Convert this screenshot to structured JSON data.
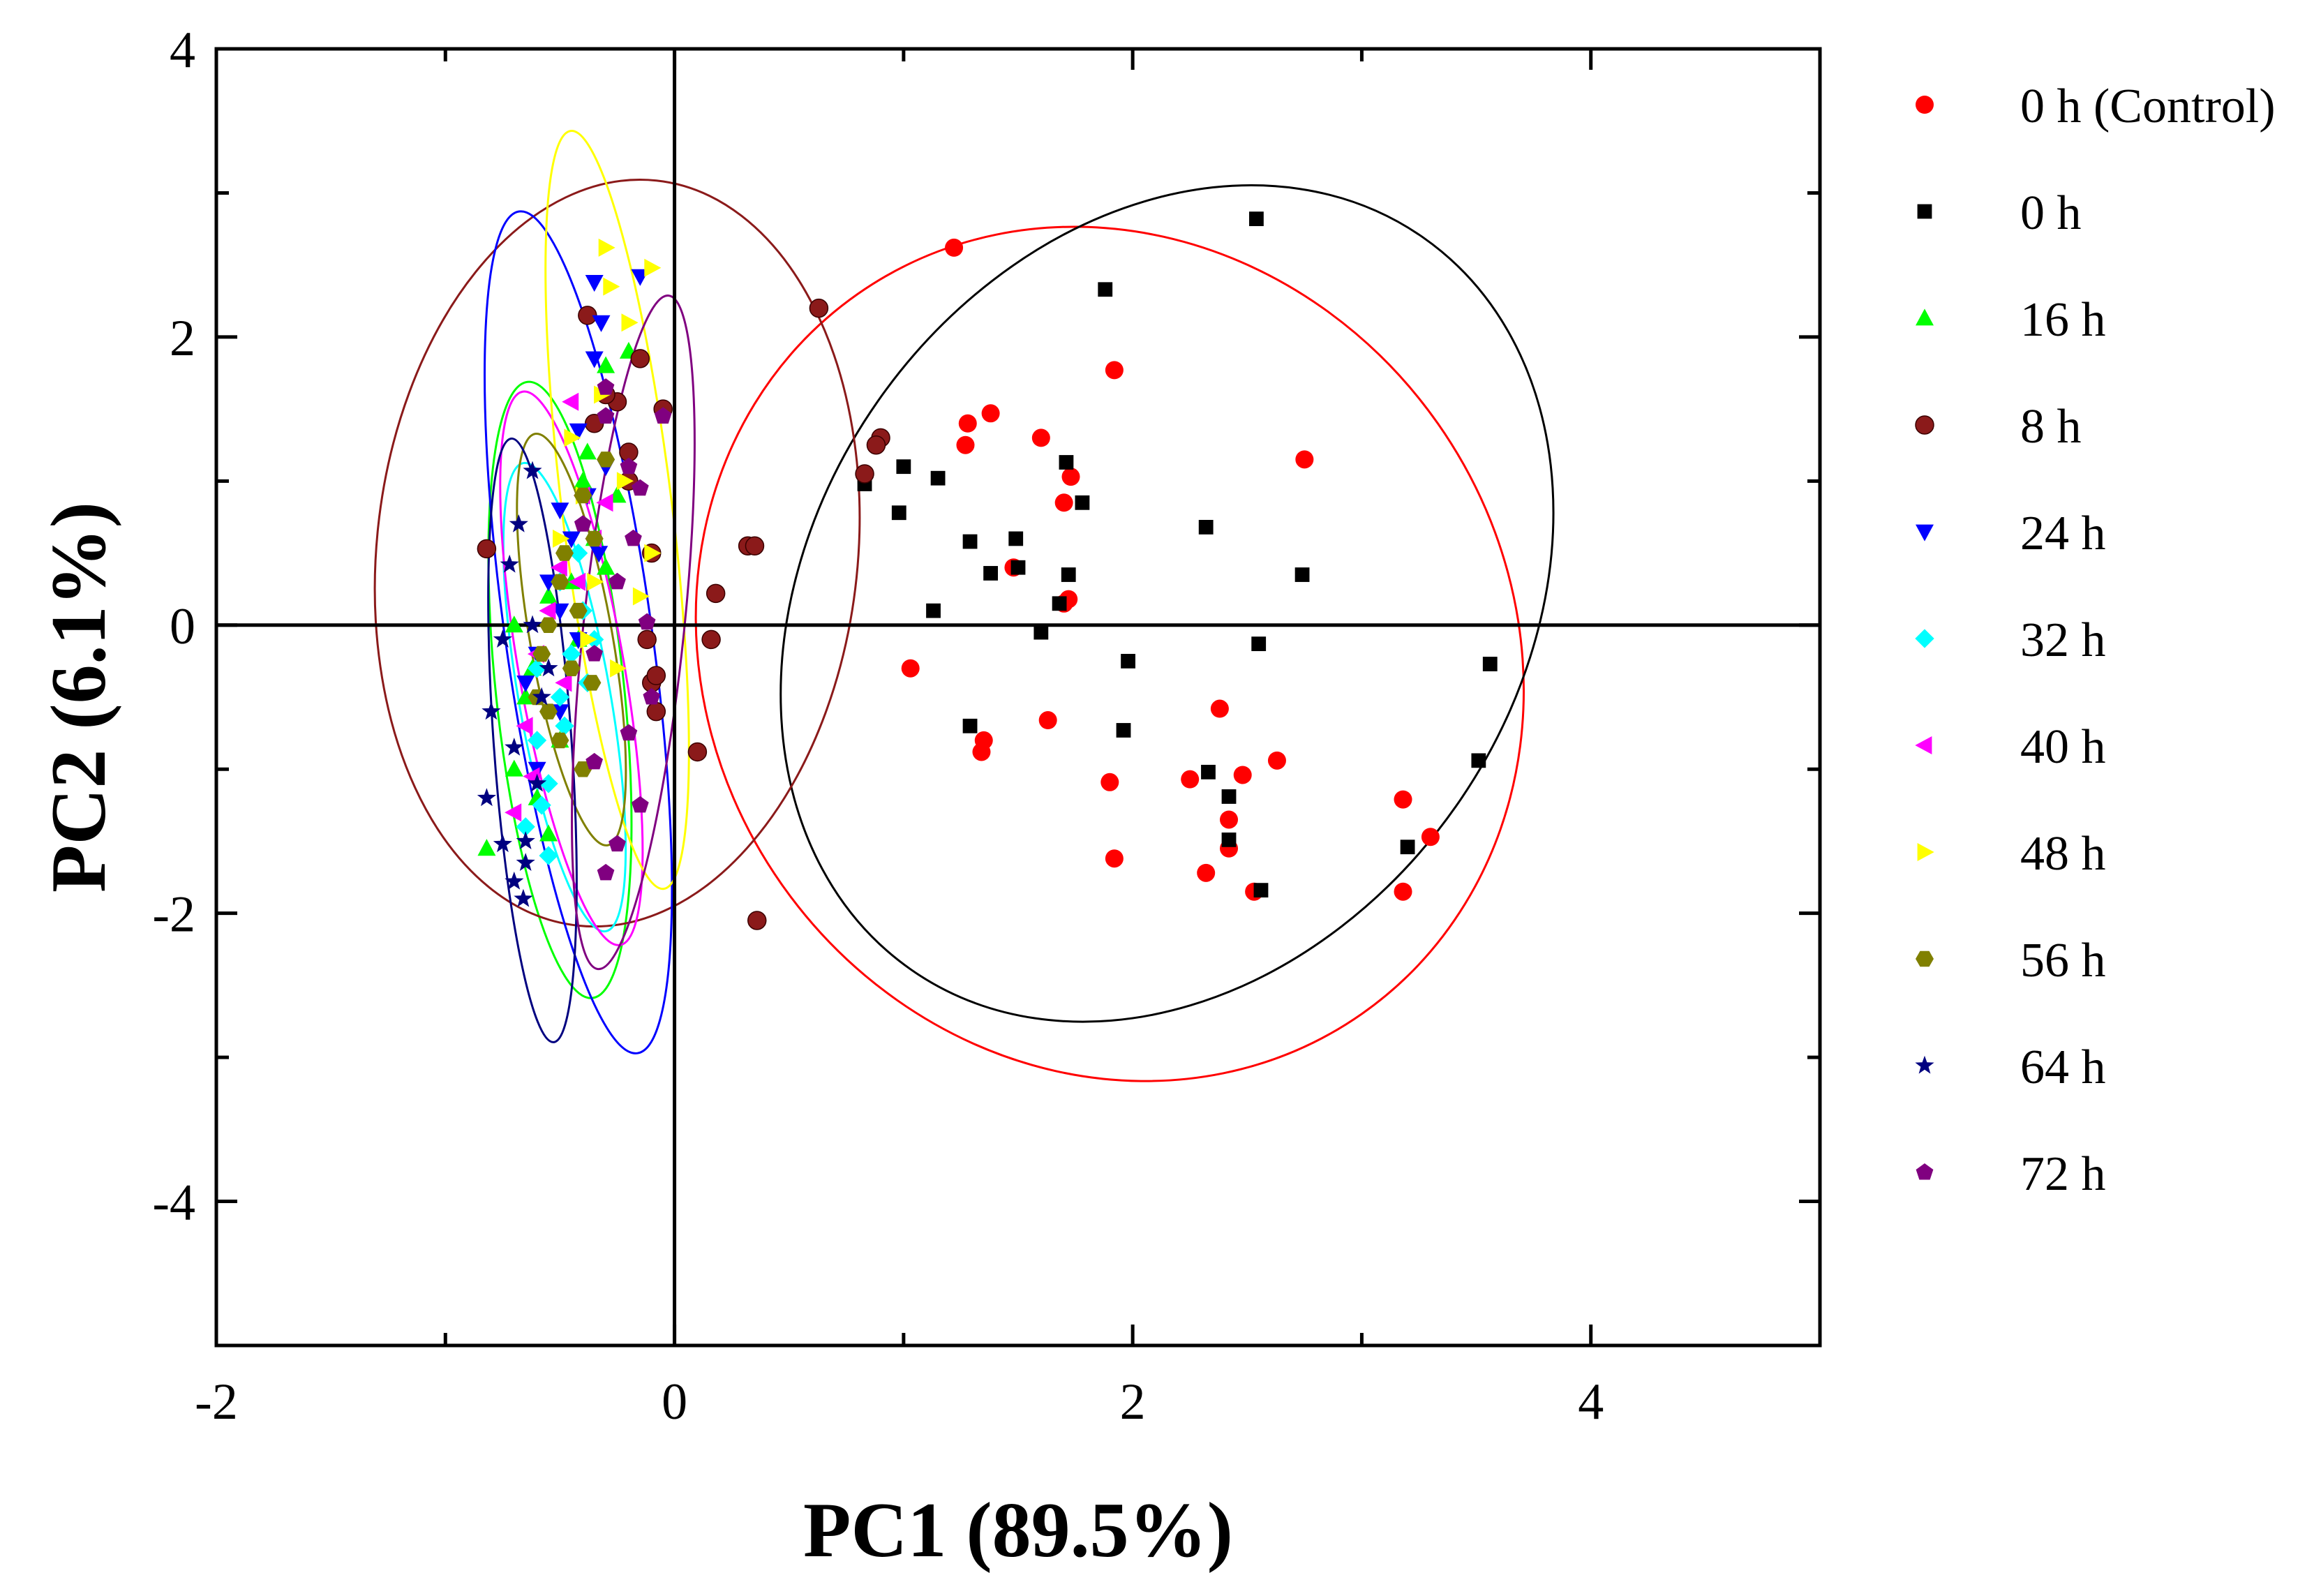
{
  "chart_data": {
    "type": "scatter",
    "title": "",
    "xlabel": "PC1 (89.5%)",
    "ylabel": "PC2 (6.1%)",
    "xlim": [
      -2,
      5
    ],
    "ylim": [
      -5,
      4
    ],
    "xticks": [
      -2,
      0,
      2,
      4
    ],
    "yticks": [
      -4,
      -2,
      0,
      2,
      4
    ],
    "grid": false,
    "legend_position": "right",
    "reference_lines": {
      "x": 0,
      "y": 0
    },
    "series": [
      {
        "name": "0 h (Control)",
        "color": "#ff0000",
        "marker": "circle",
        "points": [
          [
            1.22,
            2.62
          ],
          [
            1.38,
            1.47
          ],
          [
            1.28,
            1.4
          ],
          [
            1.27,
            1.25
          ],
          [
            1.6,
            1.3
          ],
          [
            1.92,
            1.77
          ],
          [
            1.73,
            1.03
          ],
          [
            1.7,
            0.85
          ],
          [
            1.48,
            0.4
          ],
          [
            1.72,
            0.18
          ],
          [
            1.7,
            0.15
          ],
          [
            1.03,
            -0.3
          ],
          [
            1.35,
            -0.8
          ],
          [
            1.34,
            -0.88
          ],
          [
            1.63,
            -0.66
          ],
          [
            1.9,
            -1.09
          ],
          [
            1.92,
            -1.62
          ],
          [
            2.25,
            -1.07
          ],
          [
            2.32,
            -1.72
          ],
          [
            2.38,
            -0.58
          ],
          [
            2.48,
            -1.04
          ],
          [
            2.63,
            -0.94
          ],
          [
            2.42,
            -1.35
          ],
          [
            2.42,
            -1.55
          ],
          [
            2.53,
            -1.85
          ],
          [
            2.75,
            1.15
          ],
          [
            3.18,
            -1.21
          ],
          [
            3.18,
            -1.85
          ],
          [
            3.3,
            -1.47
          ]
        ],
        "ellipse": {
          "center": [
            1.9,
            -0.2
          ],
          "rx": 1.75,
          "ry": 3.05,
          "angle_deg": -35
        }
      },
      {
        "name": "0 h",
        "color": "#000000",
        "marker": "square",
        "points": [
          [
            2.54,
            2.82
          ],
          [
            1.88,
            2.33
          ],
          [
            0.83,
            0.98
          ],
          [
            1.0,
            1.1
          ],
          [
            1.15,
            1.02
          ],
          [
            0.98,
            0.78
          ],
          [
            1.71,
            1.13
          ],
          [
            1.78,
            0.85
          ],
          [
            1.29,
            0.58
          ],
          [
            1.49,
            0.6
          ],
          [
            1.38,
            0.36
          ],
          [
            1.5,
            0.4
          ],
          [
            1.72,
            0.35
          ],
          [
            1.13,
            0.1
          ],
          [
            1.68,
            0.15
          ],
          [
            1.6,
            -0.05
          ],
          [
            1.98,
            -0.25
          ],
          [
            2.32,
            0.68
          ],
          [
            2.74,
            0.35
          ],
          [
            2.55,
            -0.13
          ],
          [
            3.56,
            -0.27
          ],
          [
            1.29,
            -0.7
          ],
          [
            1.96,
            -0.73
          ],
          [
            2.33,
            -1.02
          ],
          [
            2.42,
            -1.19
          ],
          [
            2.42,
            -1.49
          ],
          [
            2.56,
            -1.84
          ],
          [
            3.2,
            -1.54
          ],
          [
            3.51,
            -0.94
          ]
        ],
        "ellipse": {
          "center": [
            2.15,
            0.15
          ],
          "rx": 1.95,
          "ry": 2.45,
          "angle_deg": -55
        }
      },
      {
        "name": "16 h",
        "color": "#00ff00",
        "marker": "triangle-up",
        "points": [
          [
            -0.82,
            -1.55
          ],
          [
            -0.65,
            -0.5
          ],
          [
            -0.55,
            0.2
          ],
          [
            -0.4,
            1.0
          ],
          [
            -0.3,
            1.8
          ],
          [
            -0.6,
            -1.2
          ],
          [
            -0.45,
            0.3
          ],
          [
            -0.7,
            0.0
          ],
          [
            -0.5,
            -0.8
          ],
          [
            -0.35,
            0.6
          ],
          [
            -0.25,
            0.9
          ],
          [
            -0.62,
            -0.3
          ],
          [
            -0.42,
            -0.1
          ],
          [
            -0.3,
            0.4
          ],
          [
            -0.7,
            -1.0
          ],
          [
            -0.2,
            1.9
          ],
          [
            -0.55,
            -1.45
          ],
          [
            -0.38,
            1.2
          ]
        ],
        "ellipse": {
          "center": [
            -0.5,
            -0.45
          ],
          "rx": 0.28,
          "ry": 2.15,
          "angle_deg": -6
        }
      },
      {
        "name": "8 h",
        "color": "#8b1a1a",
        "marker": "sphere",
        "points": [
          [
            0.63,
            2.2
          ],
          [
            0.9,
            1.3
          ],
          [
            0.88,
            1.25
          ],
          [
            0.83,
            1.05
          ],
          [
            0.32,
            0.55
          ],
          [
            0.35,
            0.55
          ],
          [
            0.18,
            0.22
          ],
          [
            0.16,
            -0.1
          ],
          [
            -0.1,
            -0.4
          ],
          [
            -0.08,
            -0.6
          ],
          [
            0.1,
            -0.88
          ],
          [
            0.36,
            -2.05
          ],
          [
            -0.82,
            0.53
          ],
          [
            -0.38,
            2.15
          ],
          [
            -0.15,
            1.85
          ],
          [
            -0.25,
            1.55
          ],
          [
            -0.3,
            1.6
          ],
          [
            -0.05,
            1.5
          ],
          [
            -0.2,
            1.0
          ],
          [
            -0.1,
            0.5
          ],
          [
            -0.12,
            -0.1
          ],
          [
            -0.08,
            -0.35
          ],
          [
            -0.35,
            1.4
          ],
          [
            -0.2,
            1.2
          ]
        ],
        "ellipse": {
          "center": [
            -0.25,
            0.5
          ],
          "rx": 1.05,
          "ry": 2.6,
          "angle_deg": 6
        }
      },
      {
        "name": "24 h",
        "color": "#0000ff",
        "marker": "triangle-down",
        "points": [
          [
            -0.15,
            2.42
          ],
          [
            -0.35,
            2.38
          ],
          [
            -0.32,
            2.1
          ],
          [
            -0.35,
            1.85
          ],
          [
            -0.42,
            1.35
          ],
          [
            -0.5,
            0.8
          ],
          [
            -0.55,
            0.3
          ],
          [
            -0.6,
            -0.2
          ],
          [
            -0.45,
            0.6
          ],
          [
            -0.38,
            0.9
          ],
          [
            -0.6,
            -1.0
          ],
          [
            -0.5,
            -0.6
          ],
          [
            -0.3,
            1.1
          ],
          [
            -0.65,
            -0.4
          ],
          [
            -0.42,
            -0.1
          ],
          [
            -0.5,
            0.1
          ],
          [
            -0.33,
            0.5
          ]
        ],
        "ellipse": {
          "center": [
            -0.42,
            -0.05
          ],
          "rx": 0.32,
          "ry": 2.95,
          "angle_deg": -8
        }
      },
      {
        "name": "32 h",
        "color": "#00ffff",
        "marker": "diamond",
        "points": [
          [
            -0.5,
            -0.5
          ],
          [
            -0.6,
            -0.8
          ],
          [
            -0.45,
            -0.2
          ],
          [
            -0.55,
            -1.1
          ],
          [
            -0.4,
            0.1
          ],
          [
            -0.65,
            -1.4
          ],
          [
            -0.5,
            0.3
          ],
          [
            -0.35,
            -0.1
          ],
          [
            -0.6,
            -0.3
          ],
          [
            -0.48,
            -0.7
          ],
          [
            -0.55,
            -1.6
          ],
          [
            -0.42,
            0.5
          ],
          [
            -0.58,
            -1.25
          ],
          [
            -0.38,
            -0.4
          ]
        ],
        "ellipse": {
          "center": [
            -0.48,
            -0.5
          ],
          "rx": 0.2,
          "ry": 1.65,
          "angle_deg": -10
        }
      },
      {
        "name": "40 h",
        "color": "#ff00ff",
        "marker": "triangle-left",
        "points": [
          [
            -0.45,
            1.55
          ],
          [
            -0.4,
            0.9
          ],
          [
            -0.5,
            0.4
          ],
          [
            -0.6,
            -0.2
          ],
          [
            -0.65,
            -0.7
          ],
          [
            -0.7,
            -1.3
          ],
          [
            -0.55,
            0.1
          ],
          [
            -0.35,
            0.6
          ],
          [
            -0.48,
            -0.4
          ],
          [
            -0.62,
            -1.05
          ],
          [
            -0.42,
            0.3
          ],
          [
            -0.3,
            0.85
          ]
        ],
        "ellipse": {
          "center": [
            -0.45,
            -0.3
          ],
          "rx": 0.23,
          "ry": 1.95,
          "angle_deg": -10
        }
      },
      {
        "name": "48 h",
        "color": "#ffff00",
        "marker": "triangle-right",
        "points": [
          [
            -0.3,
            2.62
          ],
          [
            -0.1,
            2.48
          ],
          [
            -0.28,
            2.35
          ],
          [
            -0.2,
            2.1
          ],
          [
            -0.45,
            1.3
          ],
          [
            -0.4,
            0.9
          ],
          [
            -0.1,
            0.5
          ],
          [
            -0.35,
            0.3
          ],
          [
            -0.25,
            -0.3
          ],
          [
            -0.5,
            0.6
          ],
          [
            -0.32,
            1.6
          ],
          [
            -0.22,
            1.0
          ],
          [
            -0.38,
            -0.1
          ],
          [
            -0.15,
            0.2
          ]
        ],
        "ellipse": {
          "center": [
            -0.25,
            0.8
          ],
          "rx": 0.24,
          "ry": 2.65,
          "angle_deg": -7
        }
      },
      {
        "name": "56 h",
        "color": "#808000",
        "marker": "hexagon",
        "points": [
          [
            -0.5,
            0.3
          ],
          [
            -0.55,
            0.0
          ],
          [
            -0.45,
            -0.3
          ],
          [
            -0.6,
            -0.5
          ],
          [
            -0.35,
            0.6
          ],
          [
            -0.4,
            0.9
          ],
          [
            -0.3,
            1.15
          ],
          [
            -0.5,
            -0.8
          ],
          [
            -0.4,
            -1.0
          ],
          [
            -0.48,
            0.5
          ],
          [
            -0.58,
            -0.2
          ],
          [
            -0.42,
            0.1
          ],
          [
            -0.55,
            -0.6
          ],
          [
            -0.36,
            -0.4
          ]
        ],
        "ellipse": {
          "center": [
            -0.45,
            -0.1
          ],
          "rx": 0.18,
          "ry": 1.45,
          "angle_deg": -10
        }
      },
      {
        "name": "64 h",
        "color": "#000080",
        "marker": "star",
        "points": [
          [
            -0.62,
            1.07
          ],
          [
            -0.68,
            0.7
          ],
          [
            -0.72,
            0.42
          ],
          [
            -0.75,
            -0.1
          ],
          [
            -0.8,
            -0.6
          ],
          [
            -0.82,
            -1.2
          ],
          [
            -0.75,
            -1.52
          ],
          [
            -0.7,
            -1.78
          ],
          [
            -0.66,
            -1.9
          ],
          [
            -0.65,
            -1.5
          ],
          [
            -0.6,
            -1.1
          ],
          [
            -0.58,
            -0.5
          ],
          [
            -0.62,
            0.0
          ],
          [
            -0.7,
            -0.85
          ],
          [
            -0.55,
            -0.3
          ],
          [
            -0.65,
            -1.65
          ]
        ],
        "ellipse": {
          "center": [
            -0.62,
            -0.8
          ],
          "rx": 0.17,
          "ry": 2.1,
          "angle_deg": -4
        }
      },
      {
        "name": "72 h",
        "color": "#800080",
        "marker": "pentagon",
        "points": [
          [
            -0.3,
            1.65
          ],
          [
            -0.3,
            1.45
          ],
          [
            -0.2,
            1.1
          ],
          [
            -0.15,
            0.95
          ],
          [
            -0.18,
            0.6
          ],
          [
            -0.12,
            0.02
          ],
          [
            -0.1,
            -0.5
          ],
          [
            -0.2,
            -0.75
          ],
          [
            -0.35,
            -0.95
          ],
          [
            -0.15,
            -1.25
          ],
          [
            -0.25,
            -1.52
          ],
          [
            -0.3,
            -1.72
          ],
          [
            -0.05,
            1.45
          ],
          [
            -0.25,
            0.3
          ],
          [
            -0.4,
            0.7
          ],
          [
            -0.35,
            -0.2
          ]
        ],
        "ellipse": {
          "center": [
            -0.18,
            -0.05
          ],
          "rx": 0.22,
          "ry": 2.35,
          "angle_deg": 6
        }
      }
    ]
  }
}
